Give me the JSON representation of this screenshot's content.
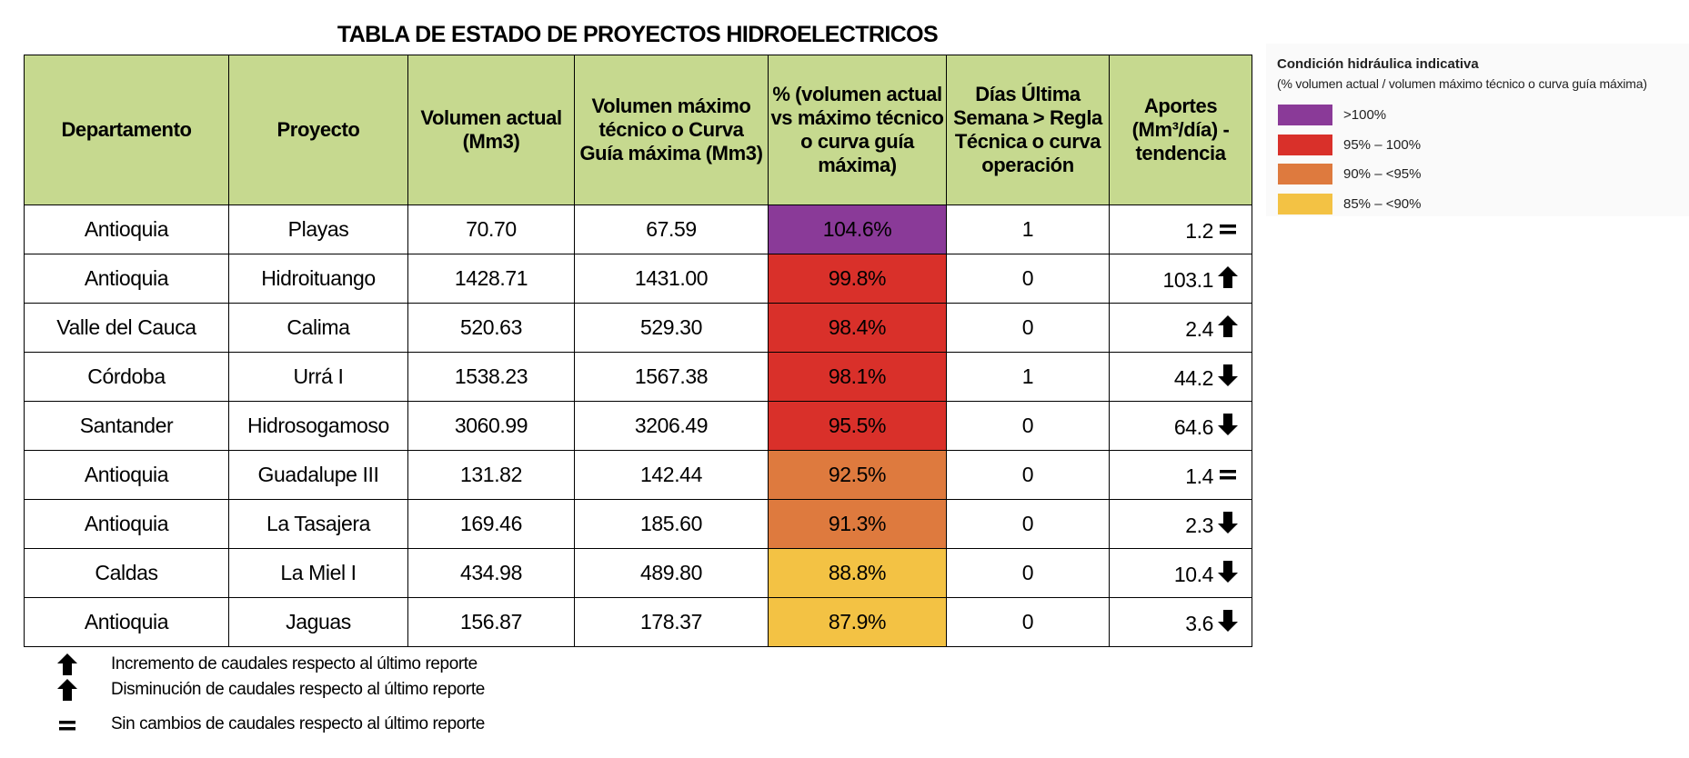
{
  "title": "TABLA DE ESTADO DE PROYECTOS HIDROELECTRICOS",
  "table": {
    "headers": [
      "Departamento",
      "Proyecto",
      "Volumen actual (Mm3)",
      "Volumen máximo técnico o Curva Guía máxima (Mm3)",
      "% (volumen actual vs máximo técnico o curva guía máxima)",
      "Días Última Semana > Regla Técnica o curva operación",
      "Aportes (Mm³/día) - tendencia"
    ],
    "rows": [
      [
        "Antioquia",
        "Playas",
        "70.70",
        "67.59",
        "104.6%",
        "1",
        "1.2"
      ],
      [
        "Antioquia",
        "Hidroituango",
        "1428.71",
        "1431.00",
        "99.8%",
        "0",
        "103.1"
      ],
      [
        "Valle del Cauca",
        "Calima",
        "520.63",
        "529.30",
        "98.4%",
        "0",
        "2.4"
      ],
      [
        "Córdoba",
        "Urrá I",
        "1538.23",
        "1567.38",
        "98.1%",
        "1",
        "44.2"
      ],
      [
        "Santander",
        "Hidrosogamoso",
        "3060.99",
        "3206.49",
        "95.5%",
        "0",
        "64.6"
      ],
      [
        "Antioquia",
        "Guadalupe III",
        "131.82",
        "142.44",
        "92.5%",
        "0",
        "1.4"
      ],
      [
        "Antioquia",
        "La Tasajera",
        "169.46",
        "185.60",
        "91.3%",
        "0",
        "2.3"
      ],
      [
        "Caldas",
        "La Miel I",
        "434.98",
        "489.80",
        "88.8%",
        "0",
        "10.4"
      ],
      [
        "Antioquia",
        "Jaguas",
        "156.87",
        "178.37",
        "87.9%",
        "0",
        "3.6"
      ]
    ]
  },
  "notes": [
    "Incremento de caudales respecto al último reporte",
    "Disminución de caudales respecto al último reporte",
    "Sin cambios de caudales respecto al último reporte"
  ],
  "legend": {
    "title": "Condición hidráulica indicativa",
    "subtitle": "(% volumen actual / volumen máximo técnico o curva guía máxima)",
    "items": [
      {
        "label": ">100%",
        "color": "#8a3a98"
      },
      {
        "label": "95% – 100%",
        "color": "#d9302a"
      },
      {
        "label": "90% – <95%",
        "color": "#de7a3e"
      },
      {
        "label": "85% – <90%",
        "color": "#f3c244"
      }
    ]
  }
}
